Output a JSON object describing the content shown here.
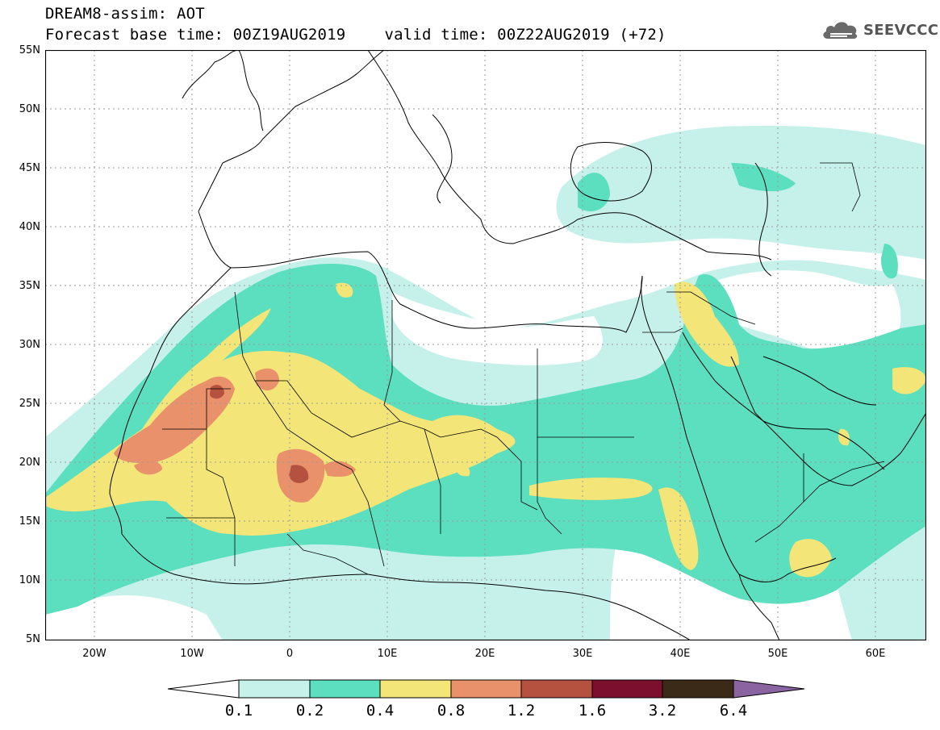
{
  "title": {
    "line1": "DREAM8-assim: AOT",
    "base_time": "Forecast base time: 00Z19AUG2019",
    "valid_time": "valid time: 00Z22AUG2019 (+72)"
  },
  "logo": {
    "text": "SEEVCCC",
    "icon": "cloud-logo-icon"
  },
  "y_axis": {
    "labels": [
      "55N",
      "50N",
      "45N",
      "40N",
      "35N",
      "30N",
      "25N",
      "20N",
      "15N",
      "10N",
      "5N"
    ],
    "range": [
      5,
      55
    ]
  },
  "x_axis": {
    "labels": [
      "20W",
      "10W",
      "0",
      "10E",
      "20E",
      "30E",
      "40E",
      "50E",
      "60E"
    ],
    "range": [
      -25,
      65
    ]
  },
  "colorbar": {
    "labels": [
      "0.1",
      "0.2",
      "0.4",
      "0.8",
      "1.2",
      "1.6",
      "3.2",
      "6.4"
    ],
    "colors": [
      "#ffffff",
      "#c6f1ea",
      "#5bdfbe",
      "#f3e577",
      "#e8916a",
      "#b4513f",
      "#7c0f2d",
      "#3c2a18",
      "#8a63a0"
    ]
  },
  "colors": {
    "land_line": "#000000",
    "grid": "#888888",
    "low": "#c6f1ea",
    "mid": "#5bdfbe",
    "high": "#f3e577",
    "higher": "#e8916a",
    "peak": "#b4513f"
  }
}
